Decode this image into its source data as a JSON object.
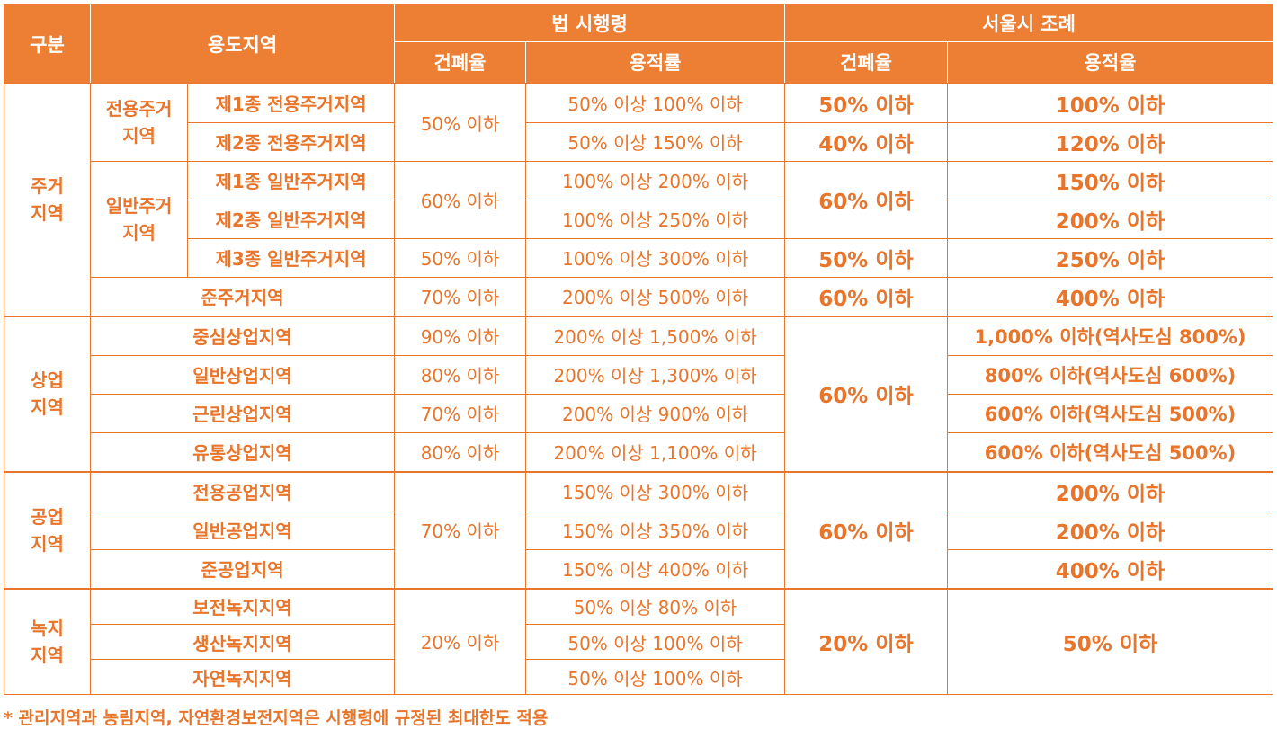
{
  "header": {
    "category": "구분",
    "zone": "용도지역",
    "law": "법 시행령",
    "seoul": "서울시 조례",
    "law_coverage": "건폐율",
    "law_far": "용적률",
    "seoul_coverage": "건폐율",
    "seoul_far": "용적율"
  },
  "groups": {
    "residential": "주거\n지역",
    "commercial": "상업\n지역",
    "industrial": "공업\n지역",
    "green": "녹지\n지역",
    "exclusive_res": "전용주거\n지역",
    "general_res": "일반주거\n지역"
  },
  "rows": [
    {
      "name": "제1종 전용주거지역",
      "law_cov": "50% 이하",
      "law_far": "50% 이상 100% 이하",
      "seoul_cov": "50% 이하",
      "seoul_far": "100% 이하"
    },
    {
      "name": "제2종 전용주거지역",
      "law_cov": "",
      "law_far": "50% 이상 150% 이하",
      "seoul_cov": "40% 이하",
      "seoul_far": "120% 이하"
    },
    {
      "name": "제1종 일반주거지역",
      "law_cov": "60% 이하",
      "law_far": "100% 이상 200% 이하",
      "seoul_cov": "60% 이하",
      "seoul_far": "150% 이하"
    },
    {
      "name": "제2종 일반주거지역",
      "law_cov": "",
      "law_far": "100% 이상 250% 이하",
      "seoul_cov": "",
      "seoul_far": "200% 이하"
    },
    {
      "name": "제3종 일반주거지역",
      "law_cov": "50% 이하",
      "law_far": "100% 이상 300% 이하",
      "seoul_cov": "50% 이하",
      "seoul_far": "250% 이하"
    },
    {
      "name": "준주거지역",
      "law_cov": "70% 이하",
      "law_far": "200% 이상 500% 이하",
      "seoul_cov": "60% 이하",
      "seoul_far": "400% 이하"
    },
    {
      "name": "중심상업지역",
      "law_cov": "90% 이하",
      "law_far": "200% 이상 1,500% 이하",
      "seoul_cov": "60% 이하",
      "seoul_far": "1,000% 이하(역사도심 800%)"
    },
    {
      "name": "일반상업지역",
      "law_cov": "80% 이하",
      "law_far": "200% 이상 1,300% 이하",
      "seoul_cov": "",
      "seoul_far": "800% 이하(역사도심 600%)"
    },
    {
      "name": "근린상업지역",
      "law_cov": "70% 이하",
      "law_far": "200% 이상 900% 이하",
      "seoul_cov": "",
      "seoul_far": "600% 이하(역사도심 500%)"
    },
    {
      "name": "유통상업지역",
      "law_cov": "80% 이하",
      "law_far": "200% 이상 1,100% 이하",
      "seoul_cov": "",
      "seoul_far": "600% 이하(역사도심 500%)"
    },
    {
      "name": "전용공업지역",
      "law_cov": "70% 이하",
      "law_far": "150% 이상 300% 이하",
      "seoul_cov": "60% 이하",
      "seoul_far": "200% 이하"
    },
    {
      "name": "일반공업지역",
      "law_cov": "",
      "law_far": "150% 이상 350% 이하",
      "seoul_cov": "",
      "seoul_far": "200% 이하"
    },
    {
      "name": "준공업지역",
      "law_cov": "",
      "law_far": "150% 이상 400% 이하",
      "seoul_cov": "",
      "seoul_far": "400% 이하"
    },
    {
      "name": "보전녹지지역",
      "law_cov": "20% 이하",
      "law_far": "50% 이상 80% 이하",
      "seoul_cov": "20% 이하",
      "seoul_far": "50% 이하"
    },
    {
      "name": "생산녹지지역",
      "law_cov": "",
      "law_far": "50% 이상 100% 이하",
      "seoul_cov": "",
      "seoul_far": ""
    },
    {
      "name": "자연녹지지역",
      "law_cov": "",
      "law_far": "50% 이상 100% 이하",
      "seoul_cov": "",
      "seoul_far": ""
    }
  ],
  "footnote": "* 관리지역과 농림지역, 자연환경보전지역은 시행령에 규정된 최대한도 적용",
  "colors": {
    "accent": "#ec7f33",
    "text": "#e8752a",
    "header_text": "#ffffff"
  }
}
